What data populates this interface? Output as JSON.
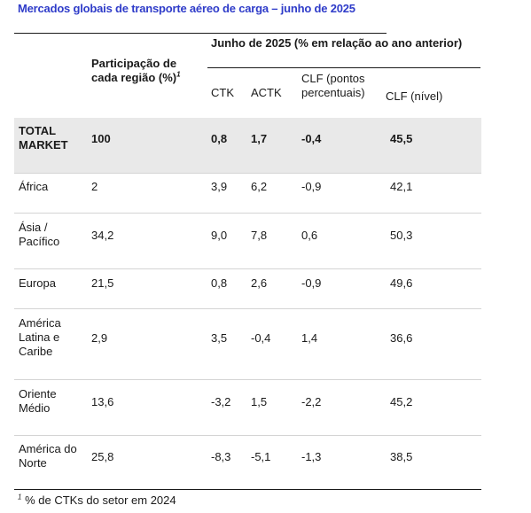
{
  "title": "Mercados globais de transporte aéreo de carga – junho de 2025",
  "header": {
    "share_label": "Participação de cada região (%)",
    "share_sup": "1",
    "group_label": "Junho de 2025 (% em relação ao ano anterior)",
    "col_ctk": "CTK",
    "col_actk": "ACTK",
    "col_clf_pp": "CLF (pontos percentuais)",
    "col_clf_level": "CLF (nível)"
  },
  "rows": [
    {
      "region": "TOTAL MARKET",
      "share": "100",
      "ctk": "0,8",
      "actk": "1,7",
      "clf_pp": "-0,4",
      "clf_level": "45,5"
    },
    {
      "region": "África",
      "share": "2",
      "ctk": "3,9",
      "actk": "6,2",
      "clf_pp": "-0,9",
      "clf_level": "42,1"
    },
    {
      "region": "Ásia / Pacífico",
      "share": "34,2",
      "ctk": "9,0",
      "actk": "7,8",
      "clf_pp": "0,6",
      "clf_level": "50,3"
    },
    {
      "region": "Europa",
      "share": "21,5",
      "ctk": "0,8",
      "actk": "2,6",
      "clf_pp": "-0,9",
      "clf_level": "49,6"
    },
    {
      "region": "América Latina e Caribe",
      "share": "2,9",
      "ctk": "3,5",
      "actk": "-0,4",
      "clf_pp": "1,4",
      "clf_level": "36,6"
    },
    {
      "region": "Oriente Médio",
      "share": "13,6",
      "ctk": "-3,2",
      "actk": "1,5",
      "clf_pp": "-2,2",
      "clf_level": "45,2"
    },
    {
      "region": "América do Norte",
      "share": "25,8",
      "ctk": "-8,3",
      "actk": "-5,1",
      "clf_pp": "-1,3",
      "clf_level": "38,5"
    }
  ],
  "footnote": {
    "sup": "1",
    "text": "% de CTKs do setor em 2024"
  }
}
